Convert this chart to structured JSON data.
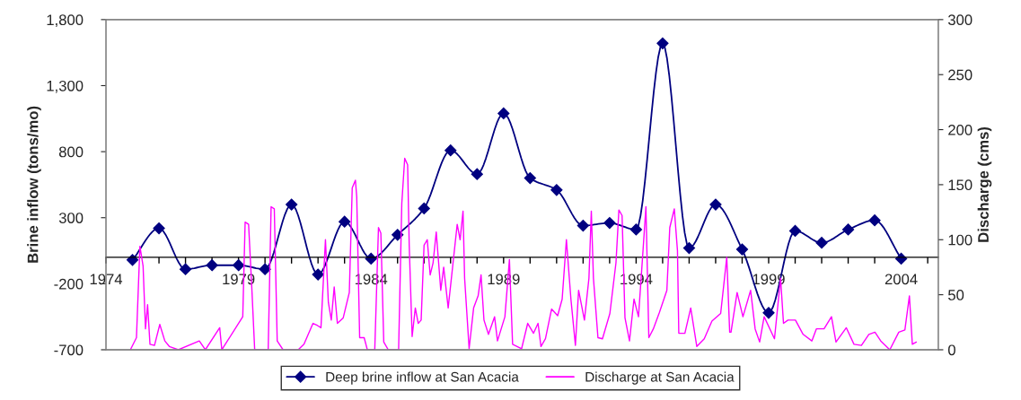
{
  "chart_data": {
    "type": "line",
    "xlabel": null,
    "ylabel": "Brine inflow (tons/mo)",
    "y2label": "Discharge (cms)",
    "xlim": [
      1974,
      2005.4
    ],
    "xticks": [
      1974,
      {
        "value": 1975,
        "label": null
      },
      {
        "value": 1976,
        "label": null
      },
      {
        "value": 1977,
        "label": null
      },
      {
        "value": 1978,
        "label": null
      },
      1979,
      {
        "value": 1980,
        "label": null
      },
      {
        "value": 1981,
        "label": null
      },
      {
        "value": 1982,
        "label": null
      },
      {
        "value": 1983,
        "label": null
      },
      1984,
      {
        "value": 1985,
        "label": null
      },
      {
        "value": 1986,
        "label": null
      },
      {
        "value": 1987,
        "label": null
      },
      {
        "value": 1988,
        "label": null
      },
      1989,
      {
        "value": 1990,
        "label": null
      },
      {
        "value": 1991,
        "label": null
      },
      {
        "value": 1992,
        "label": null
      },
      {
        "value": 1993,
        "label": null
      },
      1994,
      {
        "value": 1995,
        "label": null
      },
      {
        "value": 1996,
        "label": null
      },
      {
        "value": 1997,
        "label": null
      },
      {
        "value": 1998,
        "label": null
      },
      1999,
      {
        "value": 2000,
        "label": null
      },
      {
        "value": 2001,
        "label": null
      },
      {
        "value": 2002,
        "label": null
      },
      {
        "value": 2003,
        "label": null
      },
      2004,
      {
        "value": 2005,
        "label": null
      }
    ],
    "ylim": [
      -700,
      1800
    ],
    "yticks": [
      -700,
      -200,
      300,
      800,
      {
        "value": 1300,
        "label": "1,300"
      },
      {
        "value": 1800,
        "label": "1,800"
      }
    ],
    "y2lim": [
      0,
      300
    ],
    "y2ticks": [
      0,
      50,
      100,
      150,
      200,
      250,
      300
    ],
    "grid": false,
    "legend": "bottom",
    "series": [
      {
        "name": "Deep brine inflow at San Acacia",
        "color": "#000080",
        "marker": "diamond",
        "x": [
          1975,
          1976,
          1977,
          1978,
          1979,
          1980,
          1981,
          1982,
          1983,
          1984,
          1985,
          1986,
          1987,
          1988,
          1989,
          1990,
          1991,
          1992,
          1993,
          1994,
          1995,
          1996,
          1997,
          1998,
          1999,
          2000,
          2001,
          2002,
          2003,
          2004
        ],
        "values": [
          -20,
          220,
          -90,
          -60,
          -60,
          -90,
          400,
          -130,
          270,
          -10,
          170,
          370,
          810,
          630,
          1090,
          600,
          510,
          240,
          260,
          210,
          1620,
          70,
          400,
          60,
          -420,
          200,
          110,
          210,
          280,
          -10
        ]
      },
      {
        "name": "Discharge at San Acacia",
        "color": "#ff00ff",
        "axis": "y2",
        "marker": "none",
        "x": [
          1974.92,
          1975.15,
          1975.28,
          1975.4,
          1975.49,
          1975.57,
          1975.66,
          1975.83,
          1976.03,
          1976.22,
          1976.39,
          1976.73,
          1977.52,
          1977.75,
          1978.29,
          1978.37,
          1979.16,
          1979.25,
          1979.38,
          1979.5,
          1979.61,
          1980.12,
          1980.23,
          1980.35,
          1980.46,
          1980.68,
          1981.25,
          1981.47,
          1981.81,
          1981.98,
          1982.11,
          1982.28,
          1982.39,
          1982.5,
          1982.61,
          1982.73,
          1982.95,
          1983.18,
          1983.29,
          1983.41,
          1983.46,
          1983.57,
          1983.74,
          1983.86,
          1984.14,
          1984.28,
          1984.37,
          1984.48,
          1984.65,
          1985.04,
          1985.16,
          1985.27,
          1985.38,
          1985.44,
          1985.55,
          1985.67,
          1985.78,
          1985.89,
          1986.0,
          1986.12,
          1986.23,
          1986.34,
          1986.46,
          1986.63,
          1986.74,
          1986.91,
          1987.08,
          1987.25,
          1987.36,
          1987.47,
          1987.53,
          1987.7,
          1987.87,
          1988.04,
          1988.15,
          1988.26,
          1988.43,
          1988.66,
          1988.77,
          1989.05,
          1989.22,
          1989.34,
          1989.68,
          1989.91,
          1990.13,
          1990.3,
          1990.41,
          1990.58,
          1990.81,
          1991.04,
          1991.21,
          1991.37,
          1991.54,
          1991.71,
          1991.83,
          1992.05,
          1992.22,
          1992.31,
          1992.39,
          1992.56,
          1992.73,
          1993.01,
          1993.24,
          1993.35,
          1993.47,
          1993.58,
          1993.75,
          1993.92,
          1994.09,
          1994.26,
          1994.37,
          1994.48,
          1994.65,
          1994.88,
          1995.16,
          1995.27,
          1995.44,
          1995.56,
          1995.61,
          1995.84,
          1996.06,
          1996.29,
          1996.57,
          1996.86,
          1997.19,
          1997.42,
          1997.53,
          1997.58,
          1997.81,
          1998.03,
          1998.32,
          1998.49,
          1998.66,
          1998.83,
          1999.22,
          1999.45,
          1999.56,
          1999.73,
          2000.01,
          2000.3,
          2000.63,
          2000.8,
          2001.09,
          2001.37,
          2001.54,
          2001.93,
          2002.22,
          2002.5,
          2002.78,
          2003.01,
          2003.23,
          2003.57,
          2003.91,
          2004.14,
          2004.31,
          2004.42,
          2004.57
        ],
        "values": [
          0,
          11,
          94,
          76,
          19,
          41,
          5,
          4,
          23,
          8,
          3,
          0,
          8,
          0,
          20,
          0,
          30,
          116,
          114,
          57,
          0,
          0,
          130,
          128,
          8,
          0,
          0,
          5,
          24,
          22,
          20,
          100,
          43,
          27,
          57,
          24,
          29,
          52,
          147,
          154,
          139,
          11,
          11,
          0,
          0,
          111,
          106,
          7,
          0,
          0,
          133,
          174,
          168,
          95,
          12,
          38,
          24,
          27,
          95,
          100,
          68,
          79,
          107,
          54,
          75,
          38,
          76,
          114,
          100,
          126,
          65,
          1,
          38,
          49,
          68,
          27,
          14,
          30,
          8,
          30,
          82,
          5,
          1,
          24,
          15,
          24,
          3,
          10,
          37,
          31,
          46,
          100,
          46,
          4,
          54,
          27,
          65,
          126,
          65,
          11,
          10,
          33,
          79,
          127,
          122,
          29,
          8,
          46,
          30,
          90,
          130,
          11,
          19,
          34,
          54,
          111,
          128,
          90,
          15,
          15,
          38,
          3,
          10,
          26,
          33,
          84,
          16,
          16,
          52,
          30,
          54,
          19,
          7,
          30,
          10,
          65,
          24,
          27,
          27,
          14,
          8,
          19,
          19,
          30,
          7,
          20,
          5,
          4,
          14,
          16,
          8,
          0,
          16,
          18,
          49,
          5,
          7
        ]
      }
    ]
  }
}
